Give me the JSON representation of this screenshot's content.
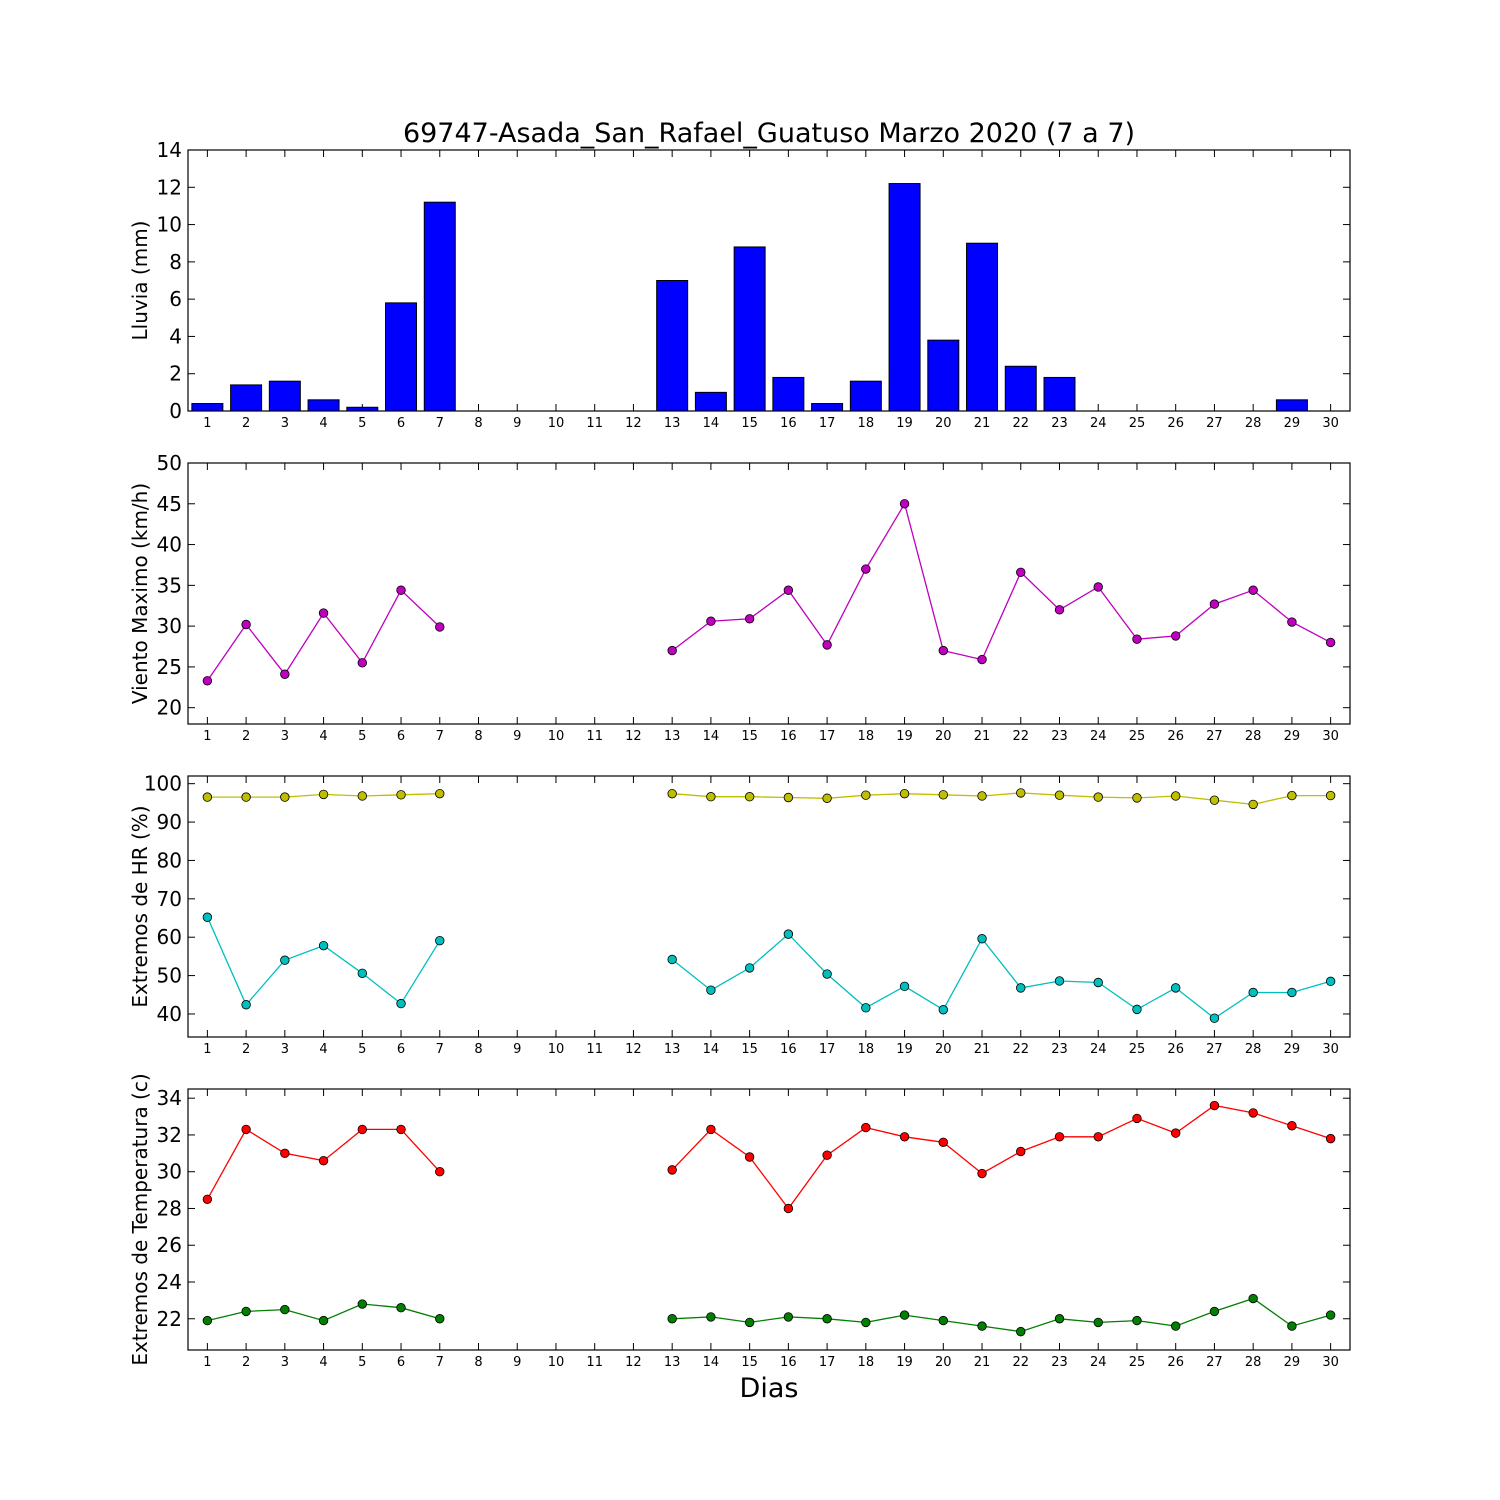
{
  "chart_data": {
    "title": "69747-Asada_San_Rafael_Guatuso Marzo 2020  (7 a 7)",
    "xlabel": "Dias",
    "days": [
      1,
      2,
      3,
      4,
      5,
      6,
      7,
      8,
      9,
      10,
      11,
      12,
      13,
      14,
      15,
      16,
      17,
      18,
      19,
      20,
      21,
      22,
      23,
      24,
      25,
      26,
      27,
      28,
      29,
      30
    ],
    "panels": [
      {
        "type": "bar",
        "ylabel": "Lluvia (mm)",
        "ylim": [
          0,
          14
        ],
        "yticks": [
          0,
          2,
          4,
          6,
          8,
          10,
          12,
          14
        ],
        "series": [
          {
            "color": "#0000ff",
            "values": [
              0.4,
              1.4,
              1.6,
              0.6,
              0.2,
              5.8,
              11.2,
              0,
              0,
              0,
              0,
              0,
              7.0,
              1.0,
              8.8,
              1.8,
              0.4,
              1.6,
              12.2,
              3.8,
              9.0,
              2.4,
              1.8,
              0,
              0,
              0,
              0,
              0,
              0.6,
              0
            ]
          }
        ]
      },
      {
        "type": "line",
        "ylabel": "Viento Maximo (km/h)",
        "ylim": [
          18,
          50
        ],
        "yticks": [
          20,
          25,
          30,
          35,
          40,
          45,
          50
        ],
        "series": [
          {
            "color": "#bf00bf",
            "values": [
              23.3,
              30.2,
              24.1,
              31.6,
              25.5,
              34.4,
              29.9,
              null,
              null,
              null,
              null,
              null,
              27.0,
              30.6,
              30.9,
              34.4,
              27.7,
              37.0,
              45.0,
              27.0,
              25.9,
              36.6,
              32.0,
              34.8,
              28.4,
              28.8,
              32.7,
              34.4,
              30.5,
              28.0
            ]
          }
        ]
      },
      {
        "type": "line",
        "ylabel": "Extremos de HR (%)",
        "ylim": [
          34,
          102
        ],
        "yticks": [
          40,
          50,
          60,
          70,
          80,
          90,
          100
        ],
        "series": [
          {
            "color": "#bfbf00",
            "values": [
              96.5,
              96.5,
              96.5,
              97.2,
              96.8,
              97.1,
              97.4,
              null,
              null,
              null,
              null,
              null,
              97.4,
              96.6,
              96.6,
              96.4,
              96.2,
              97.0,
              97.4,
              97.1,
              96.8,
              97.6,
              97.0,
              96.5,
              96.3,
              96.8,
              95.7,
              94.6,
              96.9,
              96.9
            ]
          },
          {
            "color": "#00bfbf",
            "values": [
              65.2,
              42.4,
              54.0,
              57.8,
              50.6,
              42.7,
              59.1,
              null,
              null,
              null,
              null,
              null,
              54.2,
              46.2,
              52.0,
              60.8,
              50.4,
              41.6,
              47.2,
              41.1,
              59.6,
              46.8,
              48.6,
              48.2,
              41.2,
              46.8,
              38.9,
              45.6,
              45.6,
              48.5
            ]
          }
        ]
      },
      {
        "type": "line",
        "ylabel": "Extremos de Temperatura (c)",
        "ylim": [
          20.3,
          34.5
        ],
        "yticks": [
          22,
          24,
          26,
          28,
          30,
          32,
          34
        ],
        "series": [
          {
            "color": "#ff0000",
            "values": [
              28.5,
              32.3,
              31.0,
              30.6,
              32.3,
              32.3,
              30.0,
              null,
              null,
              null,
              null,
              null,
              30.1,
              32.3,
              30.8,
              28.0,
              30.9,
              32.4,
              31.9,
              31.6,
              29.9,
              31.1,
              31.9,
              31.9,
              32.9,
              32.1,
              33.6,
              33.2,
              32.5,
              31.8
            ]
          },
          {
            "color": "#007f00",
            "values": [
              21.9,
              22.4,
              22.5,
              21.9,
              22.8,
              22.6,
              22.0,
              null,
              null,
              null,
              null,
              null,
              22.0,
              22.1,
              21.8,
              22.1,
              22.0,
              21.8,
              22.2,
              21.9,
              21.6,
              21.3,
              22.0,
              21.8,
              21.9,
              21.6,
              22.4,
              23.1,
              21.6,
              22.2
            ]
          }
        ]
      }
    ]
  }
}
